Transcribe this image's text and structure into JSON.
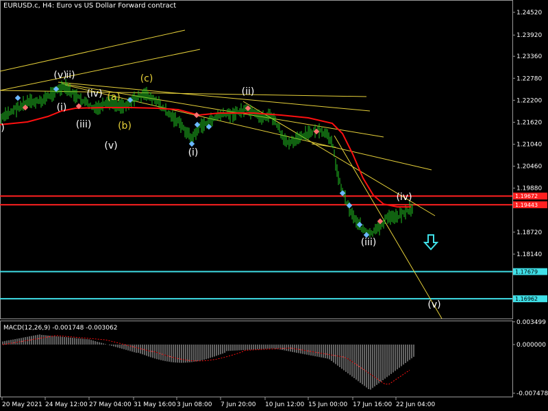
{
  "header": {
    "symbol_timeframe": "EURUSD.c, H4:",
    "description": "Euro vs US Dollar Forward contract"
  },
  "price_axis": {
    "ticks": [
      "1.24520",
      "1.23920",
      "1.23360",
      "1.22780",
      "1.22200",
      "1.21620",
      "1.21040",
      "1.20460",
      "1.19880",
      "1.18720",
      "1.18140"
    ],
    "tick_values": [
      1.2452,
      1.2392,
      1.2336,
      1.2278,
      1.222,
      1.2162,
      1.2104,
      1.2046,
      1.1988,
      1.1872,
      1.1814
    ]
  },
  "price_levels": [
    {
      "label": "1.19672",
      "value": 1.19672,
      "color": "#ff2020"
    },
    {
      "label": "1.19443",
      "value": 1.19443,
      "color": "#ff2020"
    },
    {
      "label": "1.17679",
      "value": 1.17679,
      "color": "#3fe0e8"
    },
    {
      "label": "1.16962",
      "value": 1.16962,
      "color": "#3fe0e8"
    }
  ],
  "wave_labels": [
    {
      "text": ")",
      "color": "#ffffff"
    },
    {
      "text": "(v)",
      "color": "#ffffff"
    },
    {
      "text": "ii)",
      "color": "#ffffff"
    },
    {
      "text": "(i)",
      "color": "#ffffff"
    },
    {
      "text": "(iii)",
      "color": "#ffffff"
    },
    {
      "text": "(iv)",
      "color": "#ffffff"
    },
    {
      "text": "(a)",
      "color": "#e8d23a"
    },
    {
      "text": "(b)",
      "color": "#e8d23a"
    },
    {
      "text": "(c)",
      "color": "#e8d23a"
    },
    {
      "text": "(v)",
      "color": "#ffffff"
    },
    {
      "text": "(i)",
      "color": "#ffffff"
    },
    {
      "text": "(ii)",
      "color": "#ffffff"
    },
    {
      "text": "(iii)",
      "color": "#ffffff"
    },
    {
      "text": "(iv)",
      "color": "#ffffff"
    },
    {
      "text": "(v)",
      "color": "#ffffff"
    }
  ],
  "macd": {
    "label": "MACD(12,26,9) -0.001748 -0.003062",
    "ticks": [
      "0.003499",
      "0.000000",
      "-0.007478"
    ]
  },
  "time_axis": {
    "labels": [
      "20 May 2021",
      "24 May 12:00",
      "27 May 04:00",
      "31 May 16:00",
      "3 Jun 08:00",
      "7 Jun 20:00",
      "10 Jun 12:00",
      "15 Jun 00:00",
      "17 Jun 16:00",
      "22 Jun 04:00"
    ]
  },
  "colors": {
    "candles": "#22c322",
    "moving_average": "#ff1010",
    "trendlines": "#e8d23a",
    "macd_histogram": "#c8c8c8",
    "macd_signal": "#ff1010",
    "arrow": "#3fe0e8"
  },
  "icons": {
    "arrow": "down-arrow-icon"
  }
}
